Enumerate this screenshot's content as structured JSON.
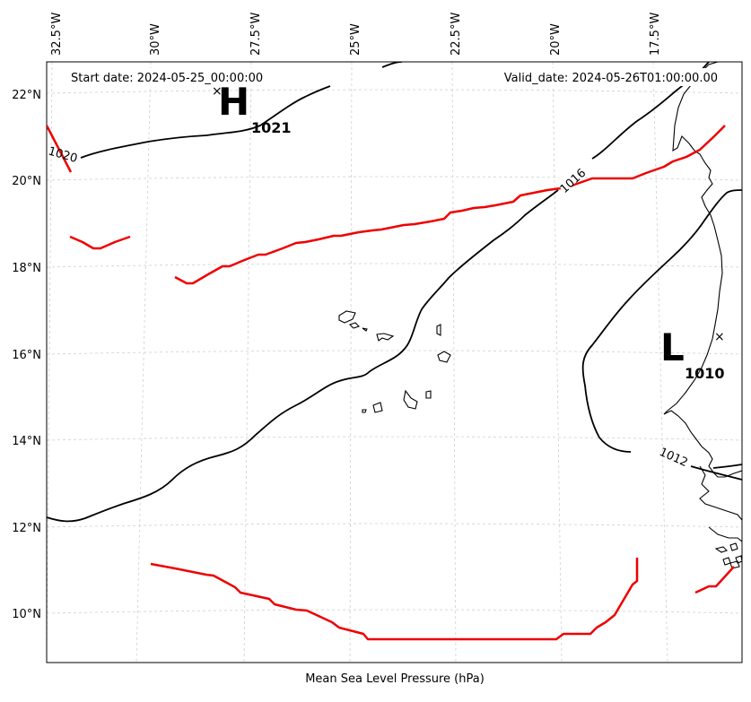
{
  "map": {
    "start_date": "Start date: 2024-05-25_00:00:00",
    "valid_date": "Valid_date: 2024-05-26T01:00:00.00",
    "caption": "Mean Sea Level Pressure (hPa)",
    "longitude_labels": [
      "32.5°W",
      "30°W",
      "27.5°W",
      "25°W",
      "22.5°W",
      "20°W",
      "17.5°W"
    ],
    "latitude_labels": [
      "22°N",
      "20°N",
      "18°N",
      "16°N",
      "14°N",
      "12°N",
      "10°N"
    ],
    "high": {
      "letter": "H",
      "pressure": "1021"
    },
    "low": {
      "letter": "L",
      "pressure": "1010"
    },
    "isobar_labels": [
      "1020",
      "1016",
      "1012"
    ],
    "colors": {
      "isobar": "#000000",
      "front": "#ee0000",
      "coast": "#000000",
      "grid": "#cfcfcf"
    }
  }
}
